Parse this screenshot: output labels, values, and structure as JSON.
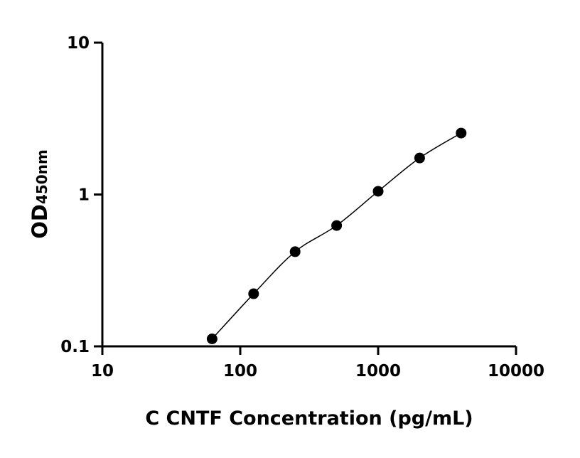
{
  "chart_data": {
    "type": "scatter",
    "title": "",
    "xlabel": "C CNTF Concentration (pg/mL)",
    "ylabel": "OD",
    "ylabel_subscript": "450nm",
    "x_scale": "log",
    "y_scale": "log",
    "xlim": [
      10,
      10000
    ],
    "ylim": [
      0.1,
      10
    ],
    "x_ticks": [
      "10",
      "100",
      "1000",
      "10000"
    ],
    "y_ticks": [
      "0.1",
      "1",
      "10"
    ],
    "grid": false,
    "fit_curve": true,
    "marker_color": "#000000",
    "series": [
      {
        "x": [
          62.5,
          125,
          250,
          500,
          1000,
          2000,
          4000
        ],
        "y": [
          0.112,
          0.222,
          0.42,
          0.625,
          1.05,
          1.74,
          2.54
        ]
      }
    ]
  }
}
